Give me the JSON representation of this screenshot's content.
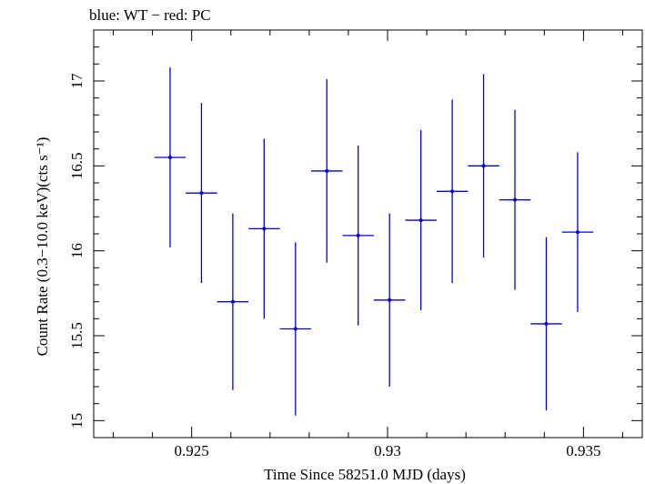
{
  "chart_data": {
    "type": "scatter",
    "title": "blue: WT − red: PC",
    "xlabel": "Time Since 58251.0 MJD (days)",
    "ylabel": "Count Rate (0.3−10.0 keV)(cts s⁻¹)",
    "xlim": [
      0.9225,
      0.9365
    ],
    "ylim": [
      14.9,
      17.3
    ],
    "x_ticks": [
      0.925,
      0.93,
      0.935
    ],
    "x_tick_labels": [
      "0.925",
      "0.93",
      "0.935"
    ],
    "y_ticks": [
      15,
      15.5,
      16,
      16.5,
      17
    ],
    "y_tick_labels": [
      "15",
      "15.5",
      "16",
      "16.5",
      "17"
    ],
    "grid": false,
    "series": [
      {
        "color": "#0000e0",
        "x": [
          0.92445,
          0.92525,
          0.92605,
          0.92685,
          0.92765,
          0.92845,
          0.92925,
          0.93005,
          0.93085,
          0.93165,
          0.93245,
          0.93325,
          0.93405,
          0.93485
        ],
        "y": [
          16.55,
          16.34,
          15.7,
          16.13,
          15.54,
          16.47,
          16.09,
          15.71,
          16.18,
          16.35,
          16.5,
          16.3,
          15.57,
          16.11
        ],
        "x_err": [
          0.0004,
          0.0004,
          0.0004,
          0.0004,
          0.0004,
          0.0004,
          0.0004,
          0.0004,
          0.0004,
          0.0004,
          0.0004,
          0.0004,
          0.0004,
          0.0004
        ],
        "y_err": [
          0.53,
          0.53,
          0.52,
          0.53,
          0.51,
          0.54,
          0.53,
          0.51,
          0.53,
          0.54,
          0.54,
          0.53,
          0.51,
          0.47
        ]
      }
    ]
  }
}
